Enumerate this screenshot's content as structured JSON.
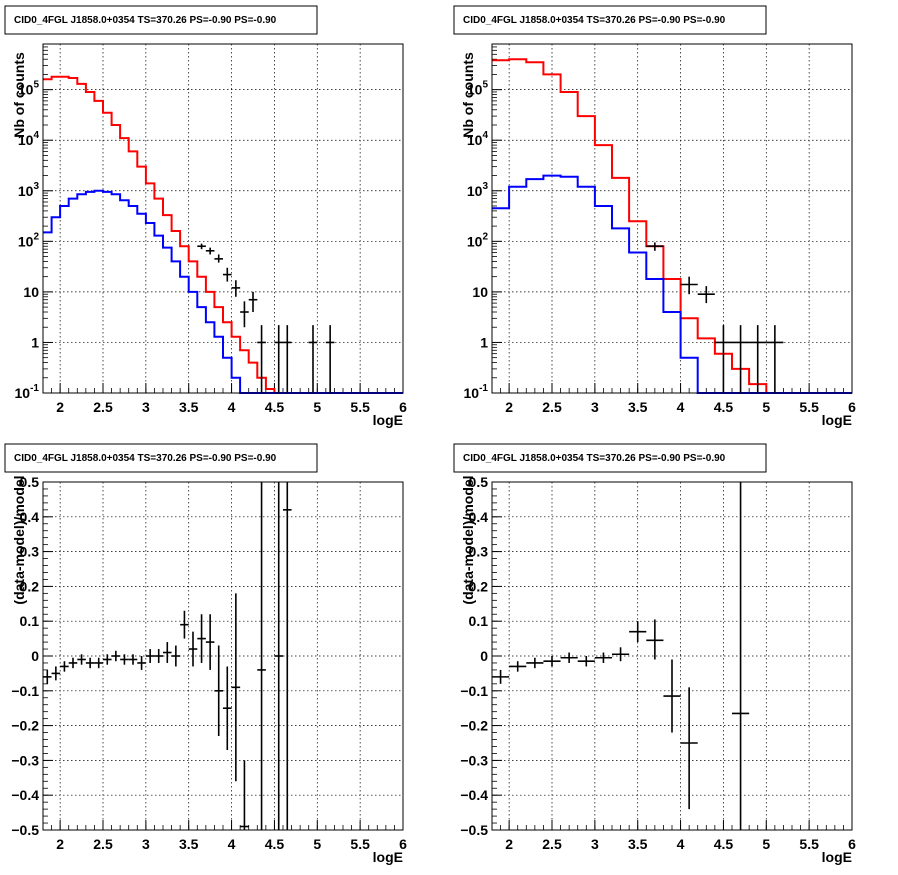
{
  "chart_data": [
    {
      "type": "step-histogram",
      "title": "CID0_4FGL J1858.0+0354 TS=370.26 PS=-0.90 PS=-0.90",
      "xlabel": "logE",
      "ylabel": "Nb of counts",
      "xlim": [
        1.8,
        6.0
      ],
      "ylim": [
        0.1,
        800000
      ],
      "yscale": "log",
      "grid": true,
      "x_ticks": [
        "2",
        "2.5",
        "3",
        "3.5",
        "4",
        "4.5",
        "5",
        "5.5",
        "6"
      ],
      "y_ticks": [
        "10^-1",
        "1",
        "10",
        "10^2",
        "10^3",
        "10^4",
        "10^5"
      ],
      "series": [
        {
          "color": "#ff0000",
          "bin_edges": [
            1.8,
            1.9,
            2.0,
            2.1,
            2.2,
            2.3,
            2.4,
            2.5,
            2.6,
            2.7,
            2.8,
            2.9,
            3.0,
            3.1,
            3.2,
            3.3,
            3.4,
            3.5,
            3.6,
            3.7,
            3.8,
            3.9,
            4.0,
            4.1,
            4.2,
            4.3,
            4.4,
            4.5,
            4.6,
            4.7,
            4.8,
            4.9,
            5.0,
            5.1,
            5.2,
            5.3,
            5.4,
            5.5,
            5.6,
            5.7,
            5.8,
            5.9,
            6.0
          ],
          "values": [
            160000,
            180000,
            180000,
            170000,
            130000,
            90000,
            60000,
            35000,
            20000,
            11000,
            6000,
            3000,
            1400,
            700,
            330,
            160,
            80,
            40,
            20,
            10,
            5,
            2.5,
            1.3,
            0.7,
            0.4,
            0.2,
            0.12,
            0.1,
            0.1,
            0.1,
            0.1,
            0.1,
            0.1,
            0.1,
            0.1,
            0.1,
            0.1,
            0.1,
            0.1,
            0.1,
            0.1,
            0.1
          ]
        },
        {
          "color": "#0000ff",
          "bin_edges": [
            1.8,
            1.9,
            2.0,
            2.1,
            2.2,
            2.3,
            2.4,
            2.5,
            2.6,
            2.7,
            2.8,
            2.9,
            3.0,
            3.1,
            3.2,
            3.3,
            3.4,
            3.5,
            3.6,
            3.7,
            3.8,
            3.9,
            4.0,
            4.1,
            4.2,
            4.3,
            4.4,
            4.5,
            4.6,
            4.7,
            4.8,
            4.9,
            5.0,
            5.1,
            5.2,
            5.3,
            5.4,
            5.5,
            5.6,
            5.7,
            5.8,
            5.9,
            6.0
          ],
          "values": [
            150,
            300,
            500,
            700,
            850,
            950,
            1000,
            950,
            850,
            650,
            500,
            350,
            230,
            130,
            75,
            40,
            20,
            10,
            5,
            2.5,
            1.3,
            0.5,
            0.2,
            0.1,
            0.1,
            0.1,
            0.1,
            0.1,
            0.1,
            0.1,
            0.1,
            0.1,
            0.1,
            0.1,
            0.1,
            0.1,
            0.1,
            0.1,
            0.1,
            0.1,
            0.1,
            0.1
          ]
        }
      ],
      "data_points": [
        {
          "x": 3.65,
          "xerr": 0.05,
          "y": 80,
          "ylo": 70,
          "yhi": 90
        },
        {
          "x": 3.75,
          "xerr": 0.05,
          "y": 65,
          "ylo": 55,
          "yhi": 75
        },
        {
          "x": 3.85,
          "xerr": 0.05,
          "y": 45,
          "ylo": 38,
          "yhi": 55
        },
        {
          "x": 3.95,
          "xerr": 0.05,
          "y": 22,
          "ylo": 16,
          "yhi": 30
        },
        {
          "x": 4.05,
          "xerr": 0.05,
          "y": 12,
          "ylo": 8,
          "yhi": 17
        },
        {
          "x": 4.15,
          "xerr": 0.05,
          "y": 4,
          "ylo": 2,
          "yhi": 6.5
        },
        {
          "x": 4.25,
          "xerr": 0.05,
          "y": 7,
          "ylo": 4,
          "yhi": 10
        },
        {
          "x": 4.35,
          "xerr": 0.05,
          "y": 1,
          "ylo": 0.1,
          "yhi": 2.2
        },
        {
          "x": 4.55,
          "xerr": 0.05,
          "y": 1,
          "ylo": 0.1,
          "yhi": 2.2
        },
        {
          "x": 4.65,
          "xerr": 0.05,
          "y": 1,
          "ylo": 0.1,
          "yhi": 2.2
        },
        {
          "x": 4.95,
          "xerr": 0.05,
          "y": 1,
          "ylo": 0.1,
          "yhi": 2.2
        },
        {
          "x": 5.15,
          "xerr": 0.05,
          "y": 1,
          "ylo": 0.1,
          "yhi": 2.2
        }
      ]
    },
    {
      "type": "step-histogram",
      "title": "CID0_4FGL J1858.0+0354 TS=370.26 PS=-0.90 PS=-0.90",
      "xlabel": "logE",
      "ylabel": "Nb of counts",
      "xlim": [
        1.8,
        6.0
      ],
      "ylim": [
        0.1,
        800000
      ],
      "yscale": "log",
      "grid": true,
      "x_ticks": [
        "2",
        "2.5",
        "3",
        "3.5",
        "4",
        "4.5",
        "5",
        "5.5",
        "6"
      ],
      "y_ticks": [
        "10^-1",
        "1",
        "10",
        "10^2",
        "10^3",
        "10^4",
        "10^5"
      ],
      "series": [
        {
          "color": "#ff0000",
          "bin_edges": [
            1.8,
            2.0,
            2.2,
            2.4,
            2.6,
            2.8,
            3.0,
            3.2,
            3.4,
            3.6,
            3.8,
            4.0,
            4.2,
            4.4,
            4.6,
            4.8,
            5.0,
            5.2,
            5.4,
            5.6,
            5.8,
            6.0
          ],
          "values": [
            380000,
            400000,
            350000,
            200000,
            90000,
            30000,
            8000,
            1800,
            250,
            80,
            18,
            3,
            1.2,
            0.6,
            0.3,
            0.15,
            0.1,
            0.1,
            0.1,
            0.1,
            0.1
          ]
        },
        {
          "color": "#0000ff",
          "bin_edges": [
            1.8,
            2.0,
            2.2,
            2.4,
            2.6,
            2.8,
            3.0,
            3.2,
            3.4,
            3.6,
            3.8,
            4.0,
            4.2,
            4.4,
            4.6,
            4.8,
            5.0,
            5.2,
            5.4,
            5.6,
            5.8,
            6.0
          ],
          "values": [
            450,
            1200,
            1700,
            2000,
            1900,
            1200,
            500,
            180,
            60,
            18,
            4,
            0.5,
            0.1,
            0.1,
            0.1,
            0.1,
            0.1,
            0.1,
            0.1,
            0.1,
            0.1
          ]
        }
      ],
      "data_points": [
        {
          "x": 3.7,
          "xerr": 0.1,
          "y": 80,
          "ylo": 65,
          "yhi": 95
        },
        {
          "x": 4.1,
          "xerr": 0.1,
          "y": 14,
          "ylo": 9,
          "yhi": 20
        },
        {
          "x": 4.3,
          "xerr": 0.1,
          "y": 9,
          "ylo": 6,
          "yhi": 13
        },
        {
          "x": 4.5,
          "xerr": 0.1,
          "y": 1,
          "ylo": 0.1,
          "yhi": 2.2
        },
        {
          "x": 4.7,
          "xerr": 0.1,
          "y": 1,
          "ylo": 0.1,
          "yhi": 2.2
        },
        {
          "x": 4.9,
          "xerr": 0.1,
          "y": 1,
          "ylo": 0.1,
          "yhi": 2.2
        },
        {
          "x": 5.1,
          "xerr": 0.1,
          "y": 1,
          "ylo": 0.1,
          "yhi": 2.2
        }
      ]
    },
    {
      "type": "scatter",
      "title": "CID0_4FGL J1858.0+0354 TS=370.26 PS=-0.90 PS=-0.90",
      "xlabel": "logE",
      "ylabel": "(data-model)/model",
      "xlim": [
        1.8,
        6.0
      ],
      "ylim": [
        -0.5,
        0.5
      ],
      "grid": true,
      "x_ticks": [
        "2",
        "2.5",
        "3",
        "3.5",
        "4",
        "4.5",
        "5",
        "5.5",
        "6"
      ],
      "y_ticks": [
        "-0.5",
        "-0.4",
        "-0.3",
        "-0.2",
        "-0.1",
        "0",
        "0.1",
        "0.2",
        "0.3",
        "0.4",
        "0.5"
      ],
      "points": [
        {
          "x": 1.85,
          "xerr": 0.05,
          "y": -0.06,
          "ylo": -0.08,
          "yhi": -0.04
        },
        {
          "x": 1.95,
          "xerr": 0.05,
          "y": -0.05,
          "ylo": -0.07,
          "yhi": -0.03
        },
        {
          "x": 2.05,
          "xerr": 0.05,
          "y": -0.03,
          "ylo": -0.045,
          "yhi": -0.015
        },
        {
          "x": 2.15,
          "xerr": 0.05,
          "y": -0.02,
          "ylo": -0.035,
          "yhi": -0.005
        },
        {
          "x": 2.25,
          "xerr": 0.05,
          "y": -0.01,
          "ylo": -0.025,
          "yhi": 0.005
        },
        {
          "x": 2.35,
          "xerr": 0.05,
          "y": -0.02,
          "ylo": -0.035,
          "yhi": -0.005
        },
        {
          "x": 2.45,
          "xerr": 0.05,
          "y": -0.02,
          "ylo": -0.035,
          "yhi": -0.005
        },
        {
          "x": 2.55,
          "xerr": 0.05,
          "y": -0.01,
          "ylo": -0.025,
          "yhi": 0.005
        },
        {
          "x": 2.65,
          "xerr": 0.05,
          "y": 0.0,
          "ylo": -0.015,
          "yhi": 0.015
        },
        {
          "x": 2.75,
          "xerr": 0.05,
          "y": -0.01,
          "ylo": -0.025,
          "yhi": 0.005
        },
        {
          "x": 2.85,
          "xerr": 0.05,
          "y": -0.01,
          "ylo": -0.025,
          "yhi": 0.005
        },
        {
          "x": 2.95,
          "xerr": 0.05,
          "y": -0.02,
          "ylo": -0.04,
          "yhi": 0.0
        },
        {
          "x": 3.05,
          "xerr": 0.05,
          "y": 0.0,
          "ylo": -0.02,
          "yhi": 0.02
        },
        {
          "x": 3.15,
          "xerr": 0.05,
          "y": 0.0,
          "ylo": -0.02,
          "yhi": 0.02
        },
        {
          "x": 3.25,
          "xerr": 0.05,
          "y": 0.01,
          "ylo": -0.02,
          "yhi": 0.04
        },
        {
          "x": 3.35,
          "xerr": 0.05,
          "y": 0.0,
          "ylo": -0.03,
          "yhi": 0.03
        },
        {
          "x": 3.45,
          "xerr": 0.05,
          "y": 0.09,
          "ylo": 0.05,
          "yhi": 0.13
        },
        {
          "x": 3.55,
          "xerr": 0.05,
          "y": 0.02,
          "ylo": -0.03,
          "yhi": 0.07
        },
        {
          "x": 3.65,
          "xerr": 0.05,
          "y": 0.05,
          "ylo": -0.02,
          "yhi": 0.12
        },
        {
          "x": 3.75,
          "xerr": 0.05,
          "y": 0.04,
          "ylo": -0.04,
          "yhi": 0.12
        },
        {
          "x": 3.85,
          "xerr": 0.05,
          "y": -0.1,
          "ylo": -0.23,
          "yhi": 0.03
        },
        {
          "x": 3.95,
          "xerr": 0.05,
          "y": -0.15,
          "ylo": -0.27,
          "yhi": -0.03
        },
        {
          "x": 4.05,
          "xerr": 0.05,
          "y": -0.09,
          "ylo": -0.36,
          "yhi": 0.18
        },
        {
          "x": 4.15,
          "xerr": 0.05,
          "y": -0.49,
          "ylo": -0.5,
          "yhi": -0.3
        },
        {
          "x": 4.35,
          "xerr": 0.05,
          "y": -0.04,
          "ylo": -0.5,
          "yhi": 0.5
        },
        {
          "x": 4.55,
          "xerr": 0.05,
          "y": 0.0,
          "ylo": -0.5,
          "yhi": 0.5
        },
        {
          "x": 4.65,
          "xerr": 0.05,
          "y": 0.42,
          "ylo": -0.5,
          "yhi": 0.5
        }
      ]
    },
    {
      "type": "scatter",
      "title": "CID0_4FGL J1858.0+0354 TS=370.26 PS=-0.90 PS=-0.90",
      "xlabel": "logE",
      "ylabel": "(data-model)/model",
      "xlim": [
        1.8,
        6.0
      ],
      "ylim": [
        -0.5,
        0.5
      ],
      "grid": true,
      "x_ticks": [
        "2",
        "2.5",
        "3",
        "3.5",
        "4",
        "4.5",
        "5",
        "5.5",
        "6"
      ],
      "y_ticks": [
        "-0.5",
        "-0.4",
        "-0.3",
        "-0.2",
        "-0.1",
        "0",
        "0.1",
        "0.2",
        "0.3",
        "0.4",
        "0.5"
      ],
      "points": [
        {
          "x": 1.9,
          "xerr": 0.1,
          "y": -0.06,
          "ylo": -0.08,
          "yhi": -0.04
        },
        {
          "x": 2.1,
          "xerr": 0.1,
          "y": -0.03,
          "ylo": -0.045,
          "yhi": -0.015
        },
        {
          "x": 2.3,
          "xerr": 0.1,
          "y": -0.02,
          "ylo": -0.035,
          "yhi": -0.005
        },
        {
          "x": 2.5,
          "xerr": 0.1,
          "y": -0.015,
          "ylo": -0.03,
          "yhi": 0.0
        },
        {
          "x": 2.7,
          "xerr": 0.1,
          "y": -0.005,
          "ylo": -0.02,
          "yhi": 0.01
        },
        {
          "x": 2.9,
          "xerr": 0.1,
          "y": -0.015,
          "ylo": -0.03,
          "yhi": 0.0
        },
        {
          "x": 3.1,
          "xerr": 0.1,
          "y": -0.005,
          "ylo": -0.02,
          "yhi": 0.01
        },
        {
          "x": 3.3,
          "xerr": 0.1,
          "y": 0.005,
          "ylo": -0.015,
          "yhi": 0.025
        },
        {
          "x": 3.5,
          "xerr": 0.1,
          "y": 0.07,
          "ylo": 0.04,
          "yhi": 0.1
        },
        {
          "x": 3.7,
          "xerr": 0.1,
          "y": 0.045,
          "ylo": -0.01,
          "yhi": 0.105
        },
        {
          "x": 3.9,
          "xerr": 0.1,
          "y": -0.115,
          "ylo": -0.22,
          "yhi": -0.01
        },
        {
          "x": 4.1,
          "xerr": 0.1,
          "y": -0.25,
          "ylo": -0.44,
          "yhi": -0.09
        },
        {
          "x": 4.7,
          "xerr": 0.1,
          "y": -0.165,
          "ylo": -0.5,
          "yhi": 0.5
        }
      ]
    }
  ]
}
